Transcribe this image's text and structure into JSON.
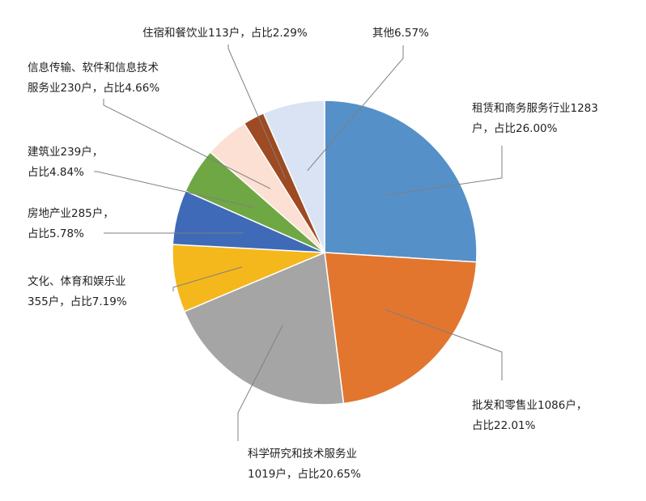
{
  "chart_data": {
    "type": "pie",
    "title": "",
    "slices": [
      {
        "category": "租赁和商务服务行业",
        "count": 1283,
        "percent": 26.0,
        "color": "#5591c8",
        "label_lines": [
          "租赁和商务服务行业1283",
          "户，占比26.00%"
        ]
      },
      {
        "category": "批发和零售业",
        "count": 1086,
        "percent": 22.01,
        "color": "#e2762f",
        "label_lines": [
          "批发和零售业1086户，",
          "占比22.01%"
        ]
      },
      {
        "category": "科学研究和技术服务业",
        "count": 1019,
        "percent": 20.65,
        "color": "#a5a5a5",
        "label_lines": [
          "科学研究和技术服务业",
          "1019户，占比20.65%"
        ]
      },
      {
        "category": "文化、体育和娱乐业",
        "count": 355,
        "percent": 7.19,
        "color": "#f4b81c",
        "label_lines": [
          "文化、体育和娱乐业",
          "355户，占比7.19%"
        ]
      },
      {
        "category": "房地产业",
        "count": 285,
        "percent": 5.78,
        "color": "#3f6ab7",
        "label_lines": [
          "房地产业285户，",
          "占比5.78%"
        ]
      },
      {
        "category": "建筑业",
        "count": 239,
        "percent": 4.84,
        "color": "#6fa744",
        "label_lines": [
          "建筑业239户，",
          "占比4.84%"
        ]
      },
      {
        "category": "信息传输、软件和信息技术服务业",
        "count": 230,
        "percent": 4.66,
        "color": "#fbe0d3",
        "label_lines": [
          "信息传输、软件和信息技术",
          "服务业230户，占比4.66%"
        ]
      },
      {
        "category": "住宿和餐饮业",
        "count": 113,
        "percent": 2.29,
        "color": "#9e4a22",
        "label_lines": [
          "住宿和餐饮业113户，占比2.29%"
        ]
      },
      {
        "category": "其他",
        "count": null,
        "percent": 6.57,
        "color": "#dae3f3",
        "label_lines": [
          "其他6.57%"
        ]
      }
    ]
  }
}
